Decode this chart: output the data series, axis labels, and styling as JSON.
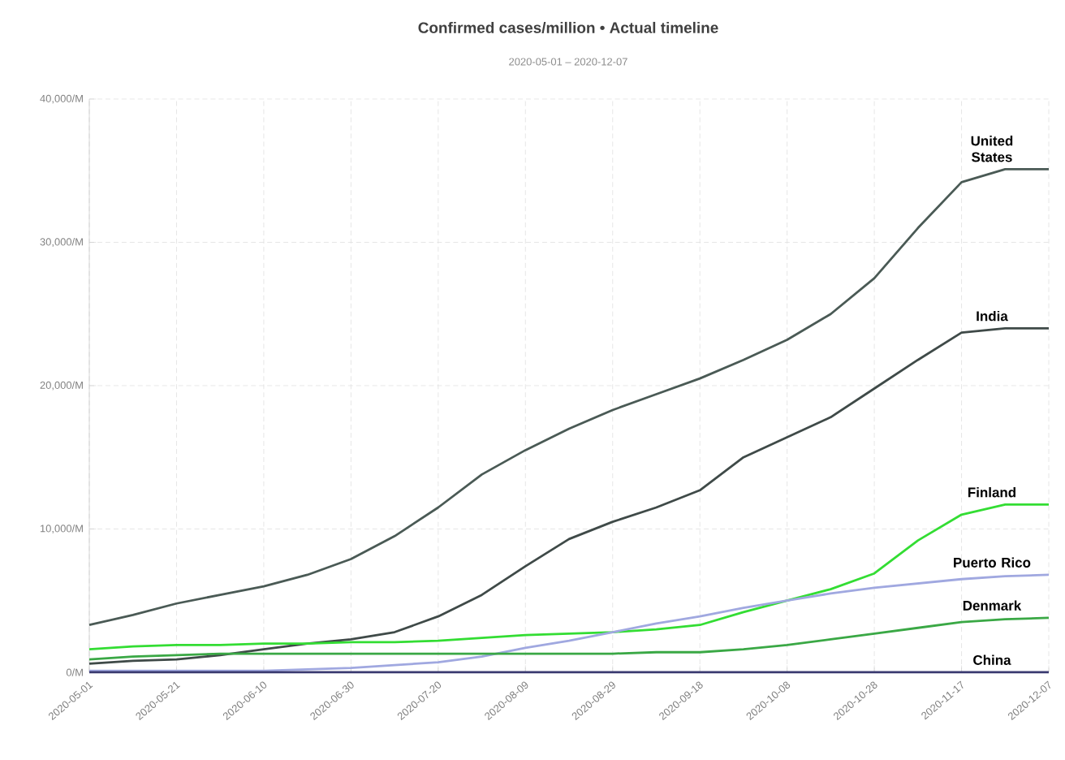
{
  "chart_data": {
    "type": "line",
    "title": "Confirmed cases/million • Actual timeline",
    "subtitle": "2020-05-01 – 2020-12-07",
    "xlim": [
      "2020-05-01",
      "2020-12-07"
    ],
    "xticks": [
      "2020-05-01",
      "2020-05-21",
      "2020-06-10",
      "2020-06-30",
      "2020-07-20",
      "2020-08-09",
      "2020-08-29",
      "2020-09-18",
      "2020-10-08",
      "2020-10-28",
      "2020-11-17",
      "2020-12-07"
    ],
    "ylim": [
      0,
      40000
    ],
    "yticks": [
      {
        "value": 0,
        "label": "0/M"
      },
      {
        "value": 10000,
        "label": "10,000/M"
      },
      {
        "value": 20000,
        "label": "20,000/M"
      },
      {
        "value": 30000,
        "label": "30,000/M"
      },
      {
        "value": 40000,
        "label": "40,000/M"
      }
    ],
    "grid": true,
    "marker": "none",
    "line_style": "solid",
    "x": [
      "2020-05-01",
      "2020-05-11",
      "2020-05-21",
      "2020-05-31",
      "2020-06-10",
      "2020-06-20",
      "2020-06-30",
      "2020-07-10",
      "2020-07-20",
      "2020-07-30",
      "2020-08-09",
      "2020-08-19",
      "2020-08-29",
      "2020-09-08",
      "2020-09-18",
      "2020-09-28",
      "2020-10-08",
      "2020-10-18",
      "2020-10-28",
      "2020-11-07",
      "2020-11-17",
      "2020-11-27",
      "2020-12-07"
    ],
    "series": [
      {
        "name": "United States",
        "color": "#4a5a55",
        "values": [
          3300,
          4000,
          4800,
          5400,
          6000,
          6800,
          7900,
          9500,
          11500,
          13800,
          15500,
          17000,
          18300,
          19400,
          20500,
          21800,
          23200,
          25000,
          27500,
          31000,
          34200,
          35100,
          35100
        ]
      },
      {
        "name": "India",
        "color": "#3f4a48",
        "values": [
          600,
          800,
          900,
          1200,
          1600,
          2000,
          2300,
          2800,
          3900,
          5400,
          7400,
          9300,
          10500,
          11500,
          12700,
          15000,
          16400,
          17800,
          19800,
          21800,
          23700,
          24000,
          24000
        ]
      },
      {
        "name": "Finland",
        "color": "#33dd33",
        "values": [
          1600,
          1800,
          1900,
          1900,
          2000,
          2000,
          2100,
          2100,
          2200,
          2400,
          2600,
          2700,
          2800,
          3000,
          3300,
          4200,
          5000,
          5800,
          6900,
          9200,
          11000,
          11700,
          11700
        ]
      },
      {
        "name": "Puerto Rico",
        "color": "#a0a8e0",
        "values": [
          100,
          100,
          100,
          100,
          100,
          200,
          300,
          500,
          700,
          1100,
          1700,
          2200,
          2800,
          3400,
          3900,
          4500,
          5000,
          5500,
          5900,
          6200,
          6500,
          6700,
          6800
        ]
      },
      {
        "name": "Denmark",
        "color": "#3aa845",
        "values": [
          900,
          1100,
          1200,
          1300,
          1300,
          1300,
          1300,
          1300,
          1300,
          1300,
          1300,
          1300,
          1300,
          1400,
          1400,
          1600,
          1900,
          2300,
          2700,
          3100,
          3500,
          3700,
          3800
        ]
      },
      {
        "name": "China",
        "color": "#3a3a70",
        "values": [
          0,
          0,
          0,
          0,
          0,
          0,
          0,
          0,
          0,
          0,
          0,
          0,
          0,
          0,
          0,
          0,
          0,
          0,
          0,
          0,
          0,
          0,
          0
        ]
      }
    ]
  }
}
